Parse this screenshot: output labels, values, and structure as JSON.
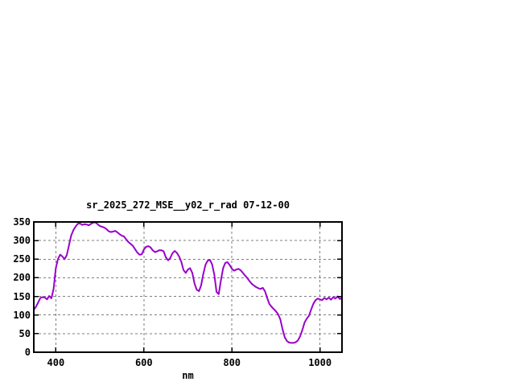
{
  "chart_data": {
    "type": "line",
    "title": "sr_2025_272_MSE__y02_r_rad 07-12-00",
    "xlabel": "nm",
    "ylabel": "",
    "xlim": [
      350,
      1050
    ],
    "ylim": [
      0,
      350
    ],
    "xticks": [
      400,
      600,
      800,
      1000
    ],
    "yticks": [
      0,
      50,
      100,
      150,
      200,
      250,
      300,
      350
    ],
    "grid": true,
    "legend_position": "none",
    "line_color": "#9900cc",
    "grid_color": "#7f7f7f",
    "border_color": "#000000",
    "series": [
      {
        "name": "sr_2025_272_MSE__y02_r_rad",
        "x": [
          350,
          355,
          360,
          365,
          370,
          375,
          380,
          385,
          390,
          395,
          400,
          405,
          410,
          415,
          420,
          425,
          430,
          435,
          440,
          445,
          450,
          455,
          460,
          465,
          470,
          475,
          480,
          485,
          490,
          495,
          500,
          505,
          510,
          515,
          520,
          525,
          530,
          535,
          540,
          545,
          550,
          555,
          560,
          565,
          570,
          575,
          580,
          585,
          590,
          595,
          600,
          605,
          610,
          615,
          620,
          625,
          630,
          635,
          640,
          645,
          650,
          655,
          660,
          665,
          670,
          675,
          680,
          685,
          690,
          695,
          700,
          705,
          710,
          715,
          720,
          725,
          730,
          735,
          740,
          745,
          750,
          755,
          760,
          765,
          770,
          775,
          780,
          785,
          790,
          795,
          800,
          805,
          810,
          815,
          820,
          825,
          830,
          835,
          840,
          845,
          850,
          855,
          860,
          865,
          870,
          875,
          880,
          885,
          890,
          895,
          900,
          905,
          910,
          915,
          920,
          925,
          930,
          935,
          940,
          945,
          950,
          955,
          960,
          965,
          970,
          975,
          980,
          985,
          990,
          995,
          1000,
          1005,
          1010,
          1015,
          1020,
          1025,
          1030,
          1035,
          1040,
          1045,
          1050
        ],
        "values": [
          114,
          122,
          134,
          146,
          148,
          147,
          142,
          151,
          145,
          170,
          226,
          251,
          262,
          257,
          250,
          261,
          288,
          314,
          328,
          338,
          345,
          346,
          342,
          344,
          343,
          341,
          345,
          348,
          349,
          344,
          339,
          337,
          335,
          331,
          325,
          323,
          324,
          326,
          322,
          317,
          313,
          311,
          303,
          296,
          291,
          286,
          277,
          268,
          262,
          263,
          276,
          283,
          285,
          282,
          274,
          269,
          271,
          274,
          274,
          271,
          255,
          247,
          253,
          266,
          272,
          267,
          257,
          243,
          221,
          213,
          222,
          226,
          213,
          185,
          168,
          164,
          179,
          211,
          235,
          246,
          248,
          236,
          209,
          162,
          156,
          193,
          226,
          240,
          242,
          234,
          224,
          219,
          222,
          224,
          220,
          213,
          206,
          199,
          191,
          184,
          179,
          175,
          172,
          170,
          173,
          164,
          146,
          130,
          122,
          116,
          110,
          102,
          88,
          62,
          40,
          30,
          26,
          25,
          25,
          27,
          32,
          43,
          60,
          80,
          90,
          98,
          115,
          130,
          140,
          144,
          142,
          140,
          146,
          142,
          147,
          141,
          148,
          144,
          150,
          143,
          146
        ]
      }
    ]
  }
}
